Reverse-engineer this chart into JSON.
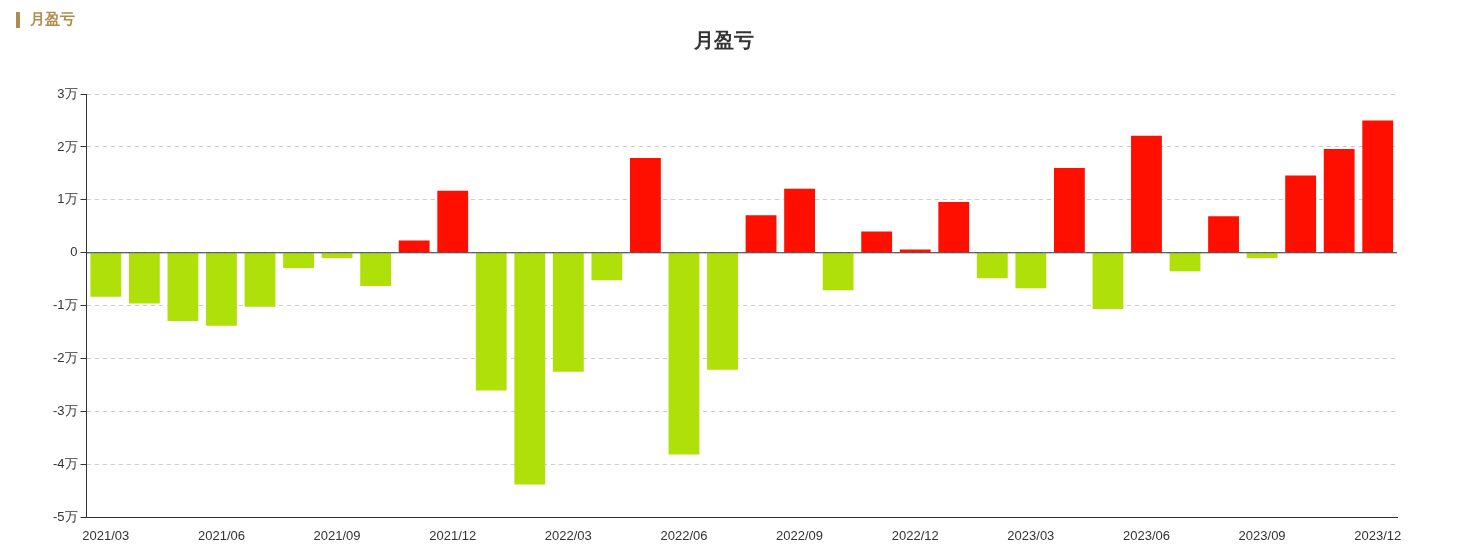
{
  "chart_data": {
    "type": "bar",
    "title": "月盈亏",
    "annotations": [
      "月盈亏"
    ],
    "categories": [
      "2021/03",
      null,
      null,
      "2021/06",
      null,
      null,
      "2021/09",
      null,
      null,
      "2021/12",
      null,
      null,
      "2022/03",
      null,
      null,
      "2022/06",
      null,
      null,
      "2022/09",
      null,
      null,
      "2022/12",
      null,
      null,
      "2023/03",
      null,
      null,
      "2023/06",
      null,
      null,
      "2023/09",
      null,
      null,
      "2023/12"
    ],
    "values": [
      -0.83,
      -0.96,
      -1.29,
      -1.38,
      -1.02,
      -0.29,
      -0.1,
      -0.63,
      0.23,
      1.17,
      -2.6,
      -4.38,
      -2.25,
      -0.52,
      1.79,
      -3.81,
      -2.21,
      0.71,
      1.21,
      -0.71,
      0.4,
      0.06,
      0.96,
      -0.48,
      -0.67,
      1.6,
      -1.06,
      2.21,
      -0.35,
      0.69,
      -0.1,
      1.46,
      1.96,
      2.5
    ],
    "colors": [
      "#b0e00a",
      "#b0e00a",
      "#b0e00a",
      "#b0e00a",
      "#b0e00a",
      "#b0e00a",
      "#b0e00a",
      "#b0e00a",
      "#ff0f00",
      "#ff0f00",
      "#b0e00a",
      "#b0e00a",
      "#b0e00a",
      "#b0e00a",
      "#ff0f00",
      "#b0e00a",
      "#b0e00a",
      "#ff0f00",
      "#ff0f00",
      "#b0e00a",
      "#ff0f00",
      "#ff0f00",
      "#ff0f00",
      "#b0e00a",
      "#b0e00a",
      "#ff0f00",
      "#b0e00a",
      "#ff0f00",
      "#b0e00a",
      "#ff0f00",
      "#b0e00a",
      "#ff0f00",
      "#ff0f00",
      "#ff0f00"
    ],
    "ylim": [
      -5,
      3
    ],
    "yticks": [
      {
        "value": -5,
        "label": "-5万"
      },
      {
        "value": -4,
        "label": "-4万"
      },
      {
        "value": -3,
        "label": "-3万"
      },
      {
        "value": -2,
        "label": "-2万"
      },
      {
        "value": -1,
        "label": "-1万"
      },
      0,
      {
        "value": 1,
        "label": "1万"
      },
      {
        "value": 2,
        "label": "2万"
      },
      {
        "value": 3,
        "label": "3万"
      }
    ],
    "grid": "y",
    "legend": false
  }
}
